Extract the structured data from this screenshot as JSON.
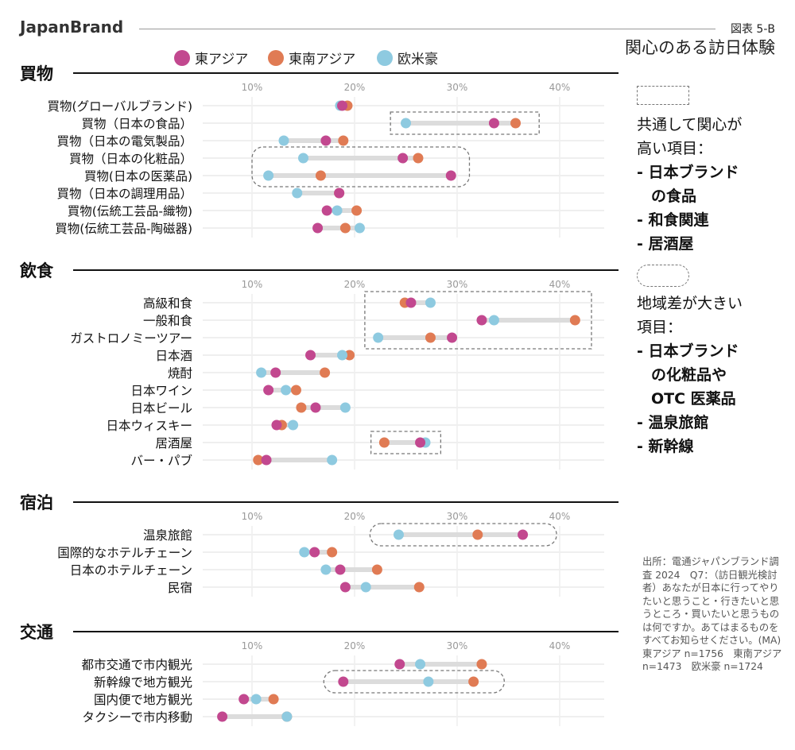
{
  "header": {
    "brand": "JapanBrand",
    "figure_no": "図表 5-B",
    "title": "関心のある訪日体験"
  },
  "legend": [
    {
      "name": "東アジア",
      "color": "#c2488f"
    },
    {
      "name": "東南アジア",
      "color": "#e07b54"
    },
    {
      "name": "欧米豪",
      "color": "#8ecae0"
    }
  ],
  "side_notes": {
    "common": {
      "heading_lines": [
        "共通して関心が",
        "高い項目："
      ],
      "items": [
        "- 日本ブランド",
        "の食品",
        "- 和食関連",
        "- 居酒屋"
      ]
    },
    "difference": {
      "heading_lines": [
        "地域差が大きい",
        "項目："
      ],
      "items": [
        "- 日本ブランド",
        "の化粧品や",
        "OTC 医薬品",
        "- 温泉旅館",
        "- 新幹線"
      ]
    }
  },
  "source": "出所：電通ジャパンブランド調査 2024　Q7：（訪日観光検討者）あなたが日本に行ってやりたいと思うこと・行きたいと思うところ・買いたいと思うものは何ですか。あてはまるものをすべてお知らせください。(MA)　東アジア n=1756　東南アジア n=1473　欧米豪 n=1724",
  "chart_data": {
    "type": "dumbbell",
    "x_ticks": [
      "10%",
      "20%",
      "30%",
      "40%"
    ],
    "x_tick_values": [
      10,
      20,
      30,
      40
    ],
    "grid": true,
    "series_names": [
      "東アジア",
      "東南アジア",
      "欧米豪"
    ],
    "sections": [
      {
        "name": "買物",
        "items": [
          {
            "label": "買物(グローバルブランド)",
            "values": [
              18.8,
              19.3,
              18.6
            ]
          },
          {
            "label": "買物（日本の食品）",
            "values": [
              33.6,
              35.7,
              25.0
            ]
          },
          {
            "label": "買物（日本の電気製品）",
            "values": [
              17.2,
              18.9,
              13.1
            ]
          },
          {
            "label": "買物（日本の化粧品）",
            "values": [
              24.7,
              26.2,
              15.0
            ]
          },
          {
            "label": "買物(日本の医薬品)",
            "values": [
              29.4,
              16.7,
              11.6
            ]
          },
          {
            "label": "買物（日本の調理用品）",
            "values": [
              18.5,
              18.5,
              14.4
            ]
          },
          {
            "label": "買物(伝統工芸品-織物)",
            "values": [
              17.3,
              20.2,
              18.3
            ]
          },
          {
            "label": "買物(伝統工芸品-陶磁器)",
            "values": [
              16.4,
              19.1,
              20.5
            ]
          }
        ],
        "highlights": [
          {
            "style": "rect",
            "items": [
              "買物（日本の食品）"
            ],
            "x_range": [
              23.5,
              38.0
            ]
          },
          {
            "style": "rounded",
            "items": [
              "買物（日本の化粧品）",
              "買物(日本の医薬品)"
            ],
            "x_range": [
              10.0,
              31.2
            ]
          }
        ]
      },
      {
        "name": "飲食",
        "items": [
          {
            "label": "高級和食",
            "values": [
              25.5,
              24.9,
              27.4
            ]
          },
          {
            "label": "一般和食",
            "values": [
              32.4,
              41.5,
              33.6
            ]
          },
          {
            "label": "ガストロノミーツアー",
            "values": [
              29.5,
              27.4,
              22.3
            ]
          },
          {
            "label": "日本酒",
            "values": [
              15.7,
              19.5,
              18.8
            ]
          },
          {
            "label": "焼酎",
            "values": [
              12.3,
              17.1,
              10.9
            ]
          },
          {
            "label": "日本ワイン",
            "values": [
              11.6,
              14.3,
              13.3
            ]
          },
          {
            "label": "日本ビール",
            "values": [
              16.2,
              14.8,
              19.1
            ]
          },
          {
            "label": "日本ウィスキー",
            "values": [
              12.4,
              12.9,
              14.0
            ]
          },
          {
            "label": "居酒屋",
            "values": [
              26.4,
              22.9,
              26.9
            ]
          },
          {
            "label": "バー・パブ",
            "values": [
              11.4,
              10.6,
              17.8
            ]
          }
        ],
        "highlights": [
          {
            "style": "rect",
            "items": [
              "高級和食",
              "一般和食",
              "ガストロノミーツアー"
            ],
            "x_range": [
              21.0,
              43.1
            ]
          },
          {
            "style": "rect",
            "items": [
              "居酒屋"
            ],
            "x_range": [
              21.6,
              28.4
            ]
          }
        ]
      },
      {
        "name": "宿泊",
        "items": [
          {
            "label": "温泉旅館",
            "values": [
              36.4,
              32.0,
              24.3
            ]
          },
          {
            "label": "国際的なホテルチェーン",
            "values": [
              16.1,
              17.8,
              15.1
            ]
          },
          {
            "label": "日本のホテルチェーン",
            "values": [
              18.6,
              22.2,
              17.2
            ]
          },
          {
            "label": "民宿",
            "values": [
              19.1,
              26.3,
              21.1
            ]
          }
        ],
        "highlights": [
          {
            "style": "rounded",
            "items": [
              "温泉旅館"
            ],
            "x_range": [
              21.5,
              39.7
            ]
          }
        ]
      },
      {
        "name": "交通",
        "items": [
          {
            "label": "都市交通で市内観光",
            "values": [
              24.4,
              32.4,
              26.4
            ]
          },
          {
            "label": "新幹線で地方観光",
            "values": [
              18.9,
              31.6,
              27.2
            ]
          },
          {
            "label": "国内便で地方観光",
            "values": [
              9.2,
              12.1,
              10.4
            ]
          },
          {
            "label": "タクシーで市内移動",
            "values": [
              7.1,
              13.4,
              13.4
            ]
          }
        ],
        "highlights": [
          {
            "style": "rounded",
            "items": [
              "新幹線で地方観光"
            ],
            "x_range": [
              17.0,
              34.6
            ]
          }
        ]
      }
    ]
  }
}
